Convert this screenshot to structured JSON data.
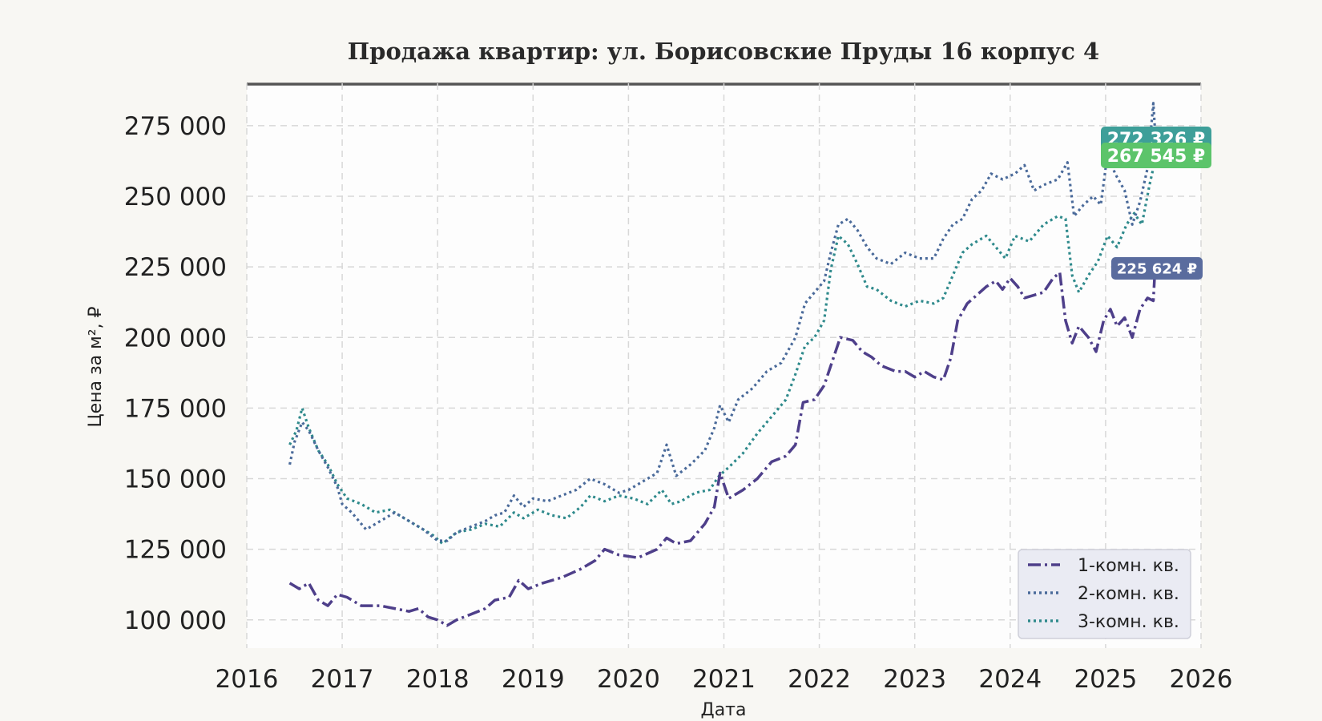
{
  "chart_data": {
    "type": "line",
    "title": "Продажа квартир: ул. Борисовские Пруды 16 корпус 4",
    "xlabel": "Дата",
    "ylabel": "Цена за м², ₽",
    "xlim": [
      2016,
      2026
    ],
    "ylim": [
      90000,
      290000
    ],
    "x_ticks": [
      2016,
      2017,
      2018,
      2019,
      2020,
      2021,
      2022,
      2023,
      2024,
      2025,
      2026
    ],
    "x_tick_labels": [
      "2016",
      "2017",
      "2018",
      "2019",
      "2020",
      "2021",
      "2022",
      "2023",
      "2024",
      "2025",
      "2026"
    ],
    "y_ticks": [
      100000,
      125000,
      150000,
      175000,
      200000,
      225000,
      250000,
      275000
    ],
    "y_tick_labels": [
      "100 000",
      "125 000",
      "150 000",
      "175 000",
      "200 000",
      "225 000",
      "250 000",
      "275 000"
    ],
    "grid": true,
    "legend_position": "bottom-right",
    "series": [
      {
        "name": "1-комн. кв.",
        "color": "#4e3f8a",
        "dash": "dashdot",
        "end_label": "225 624 ₽",
        "end_label_color": "#5a6c9e",
        "points": [
          [
            2016.45,
            113000
          ],
          [
            2016.55,
            111000
          ],
          [
            2016.65,
            113000
          ],
          [
            2016.75,
            107000
          ],
          [
            2016.85,
            105000
          ],
          [
            2016.95,
            109000
          ],
          [
            2017.05,
            108000
          ],
          [
            2017.2,
            105000
          ],
          [
            2017.4,
            105000
          ],
          [
            2017.55,
            104000
          ],
          [
            2017.7,
            103000
          ],
          [
            2017.8,
            104000
          ],
          [
            2017.9,
            101000
          ],
          [
            2018.0,
            100000
          ],
          [
            2018.1,
            98000
          ],
          [
            2018.2,
            100000
          ],
          [
            2018.35,
            102000
          ],
          [
            2018.5,
            104000
          ],
          [
            2018.6,
            107000
          ],
          [
            2018.75,
            108000
          ],
          [
            2018.85,
            114000
          ],
          [
            2018.95,
            111000
          ],
          [
            2019.1,
            113000
          ],
          [
            2019.3,
            115000
          ],
          [
            2019.5,
            118000
          ],
          [
            2019.65,
            121000
          ],
          [
            2019.75,
            125000
          ],
          [
            2019.9,
            123000
          ],
          [
            2020.1,
            122000
          ],
          [
            2020.3,
            125000
          ],
          [
            2020.4,
            129000
          ],
          [
            2020.5,
            127000
          ],
          [
            2020.65,
            128000
          ],
          [
            2020.8,
            134000
          ],
          [
            2020.9,
            140000
          ],
          [
            2020.96,
            152000
          ],
          [
            2021.05,
            143000
          ],
          [
            2021.2,
            146000
          ],
          [
            2021.35,
            150000
          ],
          [
            2021.5,
            156000
          ],
          [
            2021.65,
            158000
          ],
          [
            2021.75,
            162000
          ],
          [
            2021.83,
            177000
          ],
          [
            2021.95,
            178000
          ],
          [
            2022.05,
            183000
          ],
          [
            2022.15,
            193000
          ],
          [
            2022.22,
            200000
          ],
          [
            2022.35,
            199000
          ],
          [
            2022.45,
            195000
          ],
          [
            2022.55,
            193000
          ],
          [
            2022.65,
            190000
          ],
          [
            2022.8,
            188000
          ],
          [
            2022.9,
            188000
          ],
          [
            2023.0,
            186000
          ],
          [
            2023.1,
            188000
          ],
          [
            2023.2,
            186000
          ],
          [
            2023.3,
            185000
          ],
          [
            2023.38,
            193000
          ],
          [
            2023.45,
            206000
          ],
          [
            2023.55,
            212000
          ],
          [
            2023.65,
            215000
          ],
          [
            2023.75,
            218000
          ],
          [
            2023.85,
            220000
          ],
          [
            2023.92,
            217000
          ],
          [
            2024.0,
            221000
          ],
          [
            2024.08,
            218000
          ],
          [
            2024.15,
            214000
          ],
          [
            2024.25,
            215000
          ],
          [
            2024.35,
            216000
          ],
          [
            2024.45,
            221000
          ],
          [
            2024.52,
            223000
          ],
          [
            2024.58,
            206000
          ],
          [
            2024.65,
            198000
          ],
          [
            2024.72,
            204000
          ],
          [
            2024.82,
            200000
          ],
          [
            2024.9,
            195000
          ],
          [
            2024.98,
            206000
          ],
          [
            2025.05,
            210000
          ],
          [
            2025.12,
            204000
          ],
          [
            2025.2,
            207000
          ],
          [
            2025.28,
            200000
          ],
          [
            2025.36,
            210000
          ],
          [
            2025.44,
            214000
          ],
          [
            2025.5,
            213000
          ],
          [
            2025.52,
            225624
          ]
        ]
      },
      {
        "name": "2-комн. кв.",
        "color": "#4a6a9a",
        "dash": "dotted",
        "end_label": "272 326 ₽",
        "end_label_color": "#3e9f99",
        "points": [
          [
            2016.45,
            155000
          ],
          [
            2016.5,
            163000
          ],
          [
            2016.58,
            170000
          ],
          [
            2016.65,
            167000
          ],
          [
            2016.75,
            160000
          ],
          [
            2016.85,
            154000
          ],
          [
            2016.95,
            147000
          ],
          [
            2017.0,
            141000
          ],
          [
            2017.1,
            138000
          ],
          [
            2017.25,
            132000
          ],
          [
            2017.4,
            135000
          ],
          [
            2017.55,
            138000
          ],
          [
            2017.7,
            135000
          ],
          [
            2017.85,
            132000
          ],
          [
            2018.0,
            128000
          ],
          [
            2018.1,
            128000
          ],
          [
            2018.2,
            131000
          ],
          [
            2018.35,
            133000
          ],
          [
            2018.5,
            135000
          ],
          [
            2018.6,
            137000
          ],
          [
            2018.7,
            138000
          ],
          [
            2018.8,
            144000
          ],
          [
            2018.9,
            140000
          ],
          [
            2019.0,
            143000
          ],
          [
            2019.15,
            142000
          ],
          [
            2019.3,
            144000
          ],
          [
            2019.45,
            146000
          ],
          [
            2019.6,
            150000
          ],
          [
            2019.75,
            148000
          ],
          [
            2019.9,
            145000
          ],
          [
            2020.0,
            146000
          ],
          [
            2020.15,
            149000
          ],
          [
            2020.3,
            152000
          ],
          [
            2020.4,
            162000
          ],
          [
            2020.5,
            151000
          ],
          [
            2020.65,
            155000
          ],
          [
            2020.8,
            160000
          ],
          [
            2020.9,
            168000
          ],
          [
            2020.96,
            176000
          ],
          [
            2021.05,
            170000
          ],
          [
            2021.15,
            178000
          ],
          [
            2021.3,
            182000
          ],
          [
            2021.45,
            188000
          ],
          [
            2021.6,
            191000
          ],
          [
            2021.75,
            200000
          ],
          [
            2021.85,
            212000
          ],
          [
            2021.95,
            216000
          ],
          [
            2022.05,
            220000
          ],
          [
            2022.12,
            230000
          ],
          [
            2022.2,
            240000
          ],
          [
            2022.3,
            242000
          ],
          [
            2022.4,
            238000
          ],
          [
            2022.5,
            232000
          ],
          [
            2022.6,
            228000
          ],
          [
            2022.75,
            226000
          ],
          [
            2022.9,
            230000
          ],
          [
            2023.05,
            228000
          ],
          [
            2023.2,
            228000
          ],
          [
            2023.3,
            235000
          ],
          [
            2023.4,
            240000
          ],
          [
            2023.5,
            242000
          ],
          [
            2023.6,
            249000
          ],
          [
            2023.7,
            252000
          ],
          [
            2023.8,
            258000
          ],
          [
            2023.92,
            256000
          ],
          [
            2024.05,
            258000
          ],
          [
            2024.15,
            261000
          ],
          [
            2024.25,
            252000
          ],
          [
            2024.35,
            254000
          ],
          [
            2024.5,
            256000
          ],
          [
            2024.6,
            262000
          ],
          [
            2024.67,
            243000
          ],
          [
            2024.77,
            247000
          ],
          [
            2024.87,
            250000
          ],
          [
            2024.95,
            247000
          ],
          [
            2025.02,
            265000
          ],
          [
            2025.1,
            258000
          ],
          [
            2025.2,
            252000
          ],
          [
            2025.28,
            240000
          ],
          [
            2025.36,
            248000
          ],
          [
            2025.44,
            260000
          ],
          [
            2025.5,
            283000
          ],
          [
            2025.52,
            272326
          ]
        ]
      },
      {
        "name": "3-комн. кв.",
        "color": "#2f8a8c",
        "dash": "dotted",
        "end_label": "267 545 ₽",
        "end_label_color": "#5cc46a",
        "points": [
          [
            2016.45,
            162000
          ],
          [
            2016.52,
            167000
          ],
          [
            2016.58,
            175000
          ],
          [
            2016.65,
            168000
          ],
          [
            2016.75,
            160000
          ],
          [
            2016.85,
            155000
          ],
          [
            2016.95,
            148000
          ],
          [
            2017.05,
            143000
          ],
          [
            2017.2,
            141000
          ],
          [
            2017.35,
            138000
          ],
          [
            2017.5,
            139000
          ],
          [
            2017.65,
            136000
          ],
          [
            2017.8,
            133000
          ],
          [
            2017.95,
            130000
          ],
          [
            2018.05,
            127000
          ],
          [
            2018.2,
            131000
          ],
          [
            2018.35,
            132000
          ],
          [
            2018.5,
            134000
          ],
          [
            2018.65,
            133000
          ],
          [
            2018.8,
            138000
          ],
          [
            2018.9,
            136000
          ],
          [
            2019.05,
            139000
          ],
          [
            2019.2,
            137000
          ],
          [
            2019.35,
            136000
          ],
          [
            2019.5,
            140000
          ],
          [
            2019.6,
            144000
          ],
          [
            2019.75,
            142000
          ],
          [
            2019.9,
            144000
          ],
          [
            2020.05,
            143000
          ],
          [
            2020.2,
            141000
          ],
          [
            2020.35,
            146000
          ],
          [
            2020.45,
            141000
          ],
          [
            2020.55,
            142000
          ],
          [
            2020.7,
            145000
          ],
          [
            2020.85,
            146000
          ],
          [
            2020.95,
            151000
          ],
          [
            2021.05,
            154000
          ],
          [
            2021.2,
            159000
          ],
          [
            2021.35,
            166000
          ],
          [
            2021.5,
            172000
          ],
          [
            2021.65,
            178000
          ],
          [
            2021.75,
            187000
          ],
          [
            2021.85,
            197000
          ],
          [
            2021.95,
            200000
          ],
          [
            2022.05,
            206000
          ],
          [
            2022.12,
            224000
          ],
          [
            2022.2,
            236000
          ],
          [
            2022.3,
            233000
          ],
          [
            2022.4,
            226000
          ],
          [
            2022.5,
            218000
          ],
          [
            2022.6,
            217000
          ],
          [
            2022.75,
            213000
          ],
          [
            2022.9,
            211000
          ],
          [
            2023.05,
            213000
          ],
          [
            2023.2,
            212000
          ],
          [
            2023.3,
            214000
          ],
          [
            2023.4,
            222000
          ],
          [
            2023.5,
            230000
          ],
          [
            2023.6,
            233000
          ],
          [
            2023.75,
            236000
          ],
          [
            2023.85,
            232000
          ],
          [
            2023.95,
            228000
          ],
          [
            2024.05,
            236000
          ],
          [
            2024.2,
            234000
          ],
          [
            2024.35,
            240000
          ],
          [
            2024.5,
            243000
          ],
          [
            2024.58,
            242000
          ],
          [
            2024.65,
            222000
          ],
          [
            2024.72,
            216000
          ],
          [
            2024.82,
            222000
          ],
          [
            2024.92,
            227000
          ],
          [
            2025.02,
            236000
          ],
          [
            2025.12,
            232000
          ],
          [
            2025.22,
            240000
          ],
          [
            2025.3,
            244000
          ],
          [
            2025.38,
            240000
          ],
          [
            2025.46,
            254000
          ],
          [
            2025.5,
            260000
          ],
          [
            2025.52,
            267545
          ]
        ]
      }
    ]
  }
}
